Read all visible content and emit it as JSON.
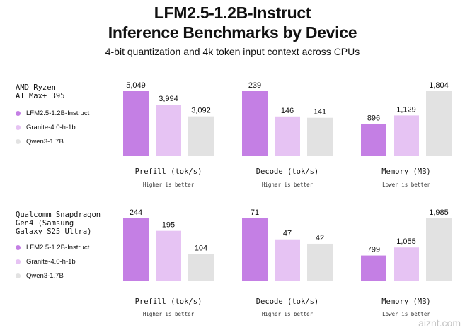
{
  "title_line1": "LFM2.5-1.2B-Instruct",
  "title_line2": "Inference Benchmarks by Device",
  "subtitle": "4-bit quantization and 4k token input context across CPUs",
  "colors": {
    "LFM2.5-1.2B-Instruct": "#c47fe4",
    "Granite-4.0-h-1b": "#e6c3f3",
    "Qwen3-1.7B": "#e2e2e2"
  },
  "legend": [
    "LFM2.5-1.2B-Instruct",
    "Granite-4.0-h-1b",
    "Qwen3-1.7B"
  ],
  "watermark": "aiznt.com",
  "chart_data": [
    {
      "type": "bar",
      "device": "AMD Ryzen\nAI Max+ 395",
      "series_names": [
        "LFM2.5-1.2B-Instruct",
        "Granite-4.0-h-1b",
        "Qwen3-1.7B"
      ],
      "metrics": [
        {
          "name": "Prefill (tok/s)",
          "note": "Higher is better",
          "values": [
            5049,
            3994,
            3092
          ],
          "labels": [
            "5,049",
            "3,994",
            "3,092"
          ]
        },
        {
          "name": "Decode (tok/s)",
          "note": "Higher is better",
          "values": [
            239,
            146,
            141
          ],
          "labels": [
            "239",
            "146",
            "141"
          ]
        },
        {
          "name": "Memory (MB)",
          "note": "Lower is better",
          "values": [
            896,
            1129,
            1804
          ],
          "labels": [
            "896",
            "1,129",
            "1,804"
          ]
        }
      ]
    },
    {
      "type": "bar",
      "device": "Qualcomm Snapdragon\nGen4 (Samsung\nGalaxy S25 Ultra)",
      "series_names": [
        "LFM2.5-1.2B-Instruct",
        "Granite-4.0-h-1b",
        "Qwen3-1.7B"
      ],
      "metrics": [
        {
          "name": "Prefill (tok/s)",
          "note": "Higher is better",
          "values": [
            244,
            195,
            104
          ],
          "labels": [
            "244",
            "195",
            "104"
          ]
        },
        {
          "name": "Decode (tok/s)",
          "note": "Higher is better",
          "values": [
            71,
            47,
            42
          ],
          "labels": [
            "71",
            "47",
            "42"
          ]
        },
        {
          "name": "Memory (MB)",
          "note": "Lower is better",
          "values": [
            799,
            1055,
            1985
          ],
          "labels": [
            "799",
            "1,055",
            "1,985"
          ]
        }
      ]
    }
  ]
}
